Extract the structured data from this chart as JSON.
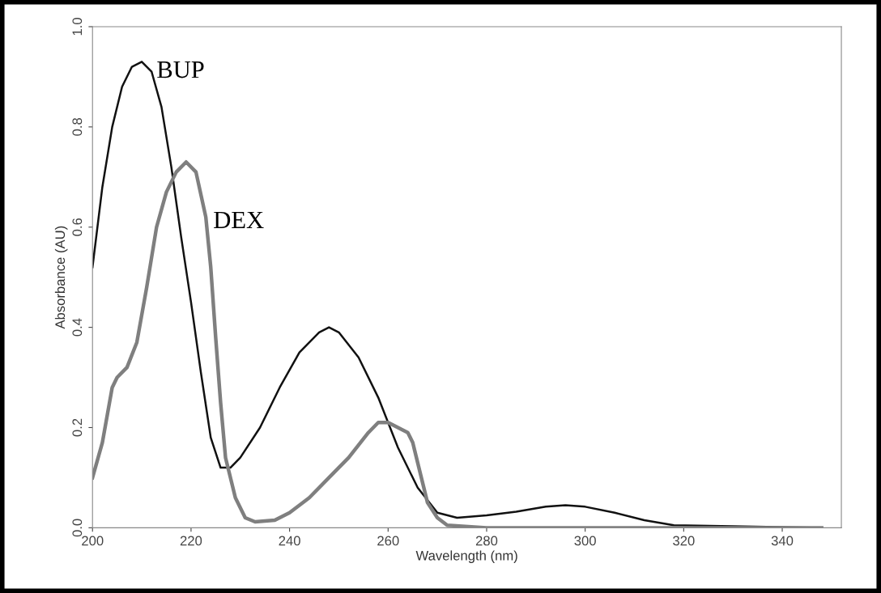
{
  "chart_data": {
    "type": "line",
    "xlabel": "Wavelength (nm)",
    "ylabel": "Absorbance (AU)",
    "xlim": [
      200,
      352
    ],
    "xticks": [
      200,
      220,
      240,
      260,
      280,
      300,
      320,
      340
    ],
    "ylim": [
      0,
      1.0
    ],
    "yticks": [
      {
        "value": 0,
        "label": "0.0"
      },
      0.2,
      0.4,
      0.6,
      0.8,
      {
        "value": 1.0,
        "label": "1.0"
      }
    ],
    "grid": false,
    "series": [
      {
        "name": "BUP",
        "color": "#111111",
        "x": [
          200,
          202,
          204,
          206,
          208,
          210,
          212,
          214,
          216,
          218,
          220,
          222,
          224,
          226,
          228,
          230,
          234,
          238,
          242,
          246,
          248,
          250,
          254,
          258,
          262,
          266,
          270,
          274,
          280,
          286,
          292,
          296,
          300,
          306,
          312,
          318,
          330,
          348
        ],
        "values": [
          0.52,
          0.68,
          0.8,
          0.88,
          0.92,
          0.93,
          0.91,
          0.84,
          0.72,
          0.58,
          0.45,
          0.31,
          0.18,
          0.12,
          0.12,
          0.14,
          0.2,
          0.28,
          0.35,
          0.39,
          0.4,
          0.39,
          0.34,
          0.26,
          0.16,
          0.08,
          0.03,
          0.02,
          0.025,
          0.032,
          0.042,
          0.045,
          0.042,
          0.03,
          0.015,
          0.005,
          0.003,
          0.0
        ]
      },
      {
        "name": "DEX",
        "color": "#7f7f7f",
        "x": [
          200,
          202,
          204,
          205,
          207,
          209,
          211,
          213,
          215,
          217,
          219,
          221,
          223,
          224,
          225,
          226,
          227,
          229,
          231,
          233,
          237,
          240,
          244,
          248,
          252,
          256,
          258,
          260,
          262,
          264,
          265,
          266,
          267,
          268,
          270,
          272,
          280,
          300,
          348
        ],
        "values": [
          0.1,
          0.17,
          0.28,
          0.3,
          0.32,
          0.37,
          0.48,
          0.6,
          0.67,
          0.71,
          0.73,
          0.71,
          0.62,
          0.52,
          0.38,
          0.25,
          0.14,
          0.06,
          0.02,
          0.012,
          0.015,
          0.03,
          0.06,
          0.1,
          0.14,
          0.19,
          0.21,
          0.21,
          0.2,
          0.19,
          0.17,
          0.13,
          0.09,
          0.05,
          0.02,
          0.005,
          0.0,
          0.0,
          0.0
        ]
      }
    ]
  }
}
